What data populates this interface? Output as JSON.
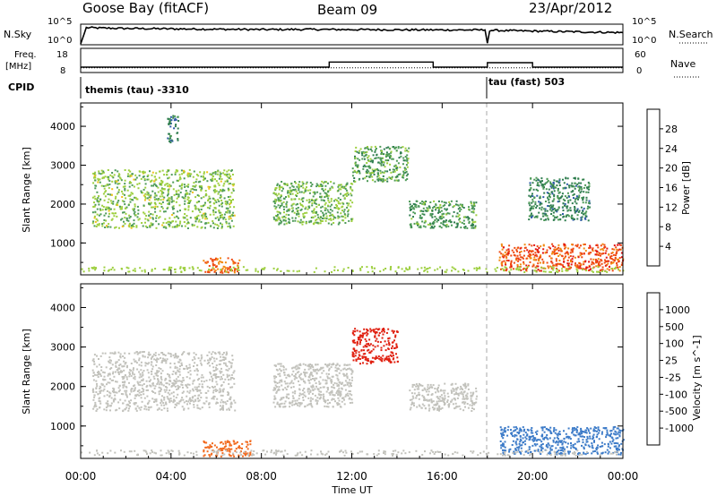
{
  "header": {
    "station": "Goose Bay (fitACF)",
    "beam": "Beam 09",
    "date": "23/Apr/2012"
  },
  "top_strips": {
    "nsky_label": "N.Sky",
    "nsky_ticks": [
      "10^5",
      "10^0"
    ],
    "nsearch_label": "N.Search",
    "nsearch_ticks": [
      "10^5",
      "10^0"
    ],
    "freq_label": "Freq.",
    "freq_unit": "[MHz]",
    "freq_ticks": [
      "18",
      "8"
    ],
    "nave_label": "Nave",
    "nave_ticks": [
      "60",
      "0"
    ],
    "cpid_label": "CPID",
    "cpid_segments": [
      {
        "start_hour": 0,
        "label": "themis (tau) -3310"
      },
      {
        "start_hour": 18,
        "label": "tau (fast) 503"
      }
    ]
  },
  "panels": {
    "power": {
      "ylabel": "Slant Range [km]",
      "yticks": [
        "4000",
        "3000",
        "2000",
        "1000"
      ],
      "colorbar_label": "Power [dB]",
      "colorbar_ticks": [
        "28",
        "24",
        "20",
        "16",
        "12",
        "8",
        "4"
      ]
    },
    "velocity": {
      "ylabel": "Slant Range [km]",
      "yticks": [
        "4000",
        "3000",
        "2000",
        "1000"
      ],
      "colorbar_label": "Velocity [m s^-1]",
      "colorbar_ticks": [
        "1000",
        "500",
        "100",
        "25",
        "-25",
        "-100",
        "-500",
        "-1000"
      ]
    }
  },
  "xaxis": {
    "label": "Time UT",
    "ticks": [
      "00:00",
      "04:00",
      "08:00",
      "12:00",
      "16:00",
      "20:00",
      "00:00"
    ]
  },
  "colors": {
    "power_scale": [
      "#1e35d6",
      "#2e5aa8",
      "#2f7d4f",
      "#4e9b58",
      "#9dcf3f",
      "#f2c21b",
      "#f28a12",
      "#ef4a12",
      "#e21212"
    ],
    "velocity_scale": [
      "#1a3fb5",
      "#3c7bc8",
      "#66c43b",
      "#bfbfbf",
      "#bfbfbf",
      "#f29a2e",
      "#f26a1e",
      "#e02010"
    ],
    "grey_scatter": "#c2c2bc"
  },
  "chart_data": [
    {
      "type": "line",
      "title": "N.Sky / N.Search",
      "x_unit": "hours UT",
      "xlim": [
        0,
        24
      ],
      "series": [
        {
          "name": "N.Sky",
          "x": [
            0,
            0.25,
            1,
            2,
            4,
            6,
            8,
            10,
            12,
            14,
            16,
            17.9,
            18,
            18.1,
            20,
            22,
            24
          ],
          "y_log10": [
            0,
            4.3,
            4.2,
            4.1,
            4.0,
            3.9,
            3.8,
            3.85,
            3.8,
            3.75,
            3.7,
            3.7,
            0.2,
            3.6,
            3.4,
            3.2,
            3.0
          ]
        }
      ],
      "ylim_log10": [
        0,
        5
      ]
    },
    {
      "type": "line",
      "title": "Freq. / Nave",
      "x_unit": "hours UT",
      "xlim": [
        0,
        24
      ],
      "series": [
        {
          "name": "Freq.",
          "x": [
            0,
            11,
            11,
            15.6,
            15.6,
            18,
            18,
            20,
            20,
            24
          ],
          "y": [
            10,
            10,
            12.3,
            12.3,
            10,
            10,
            12,
            12,
            10,
            10
          ]
        },
        {
          "name": "Nave",
          "x": [
            0,
            24
          ],
          "y": [
            10,
            10
          ]
        }
      ],
      "freq_ylim": [
        8,
        18
      ],
      "nave_ylim": [
        0,
        60
      ]
    },
    {
      "type": "scatter",
      "title": "Power [dB]",
      "x_unit": "hours UT",
      "xlim": [
        0,
        24
      ],
      "ylim": [
        180,
        4600
      ],
      "clim": [
        0,
        30
      ],
      "regions": [
        {
          "x": [
            0.5,
            6.8
          ],
          "y": [
            1400,
            2900
          ],
          "value": 14
        },
        {
          "x": [
            3.8,
            4.3
          ],
          "y": [
            3600,
            4300
          ],
          "value": 8
        },
        {
          "x": [
            5.4,
            7.0
          ],
          "y": [
            250,
            650
          ],
          "value": 24
        },
        {
          "x": [
            8.5,
            12.0
          ],
          "y": [
            1500,
            2600
          ],
          "value": 13
        },
        {
          "x": [
            12.0,
            14.5
          ],
          "y": [
            2600,
            3500
          ],
          "value": 12
        },
        {
          "x": [
            14.5,
            17.5
          ],
          "y": [
            1400,
            2100
          ],
          "value": 11
        },
        {
          "x": [
            18.5,
            24.0
          ],
          "y": [
            300,
            1000
          ],
          "value": 25
        },
        {
          "x": [
            19.8,
            22.5
          ],
          "y": [
            1600,
            2700
          ],
          "value": 9
        }
      ]
    },
    {
      "type": "scatter",
      "title": "Velocity [m s^-1]",
      "x_unit": "hours UT",
      "xlim": [
        0,
        24
      ],
      "ylim": [
        180,
        4600
      ],
      "clim": [
        -1000,
        1000
      ],
      "regions": [
        {
          "x": [
            0.5,
            6.8
          ],
          "y": [
            1400,
            2900
          ],
          "value": 0
        },
        {
          "x": [
            5.4,
            7.5
          ],
          "y": [
            250,
            650
          ],
          "value": -300
        },
        {
          "x": [
            8.5,
            12.0
          ],
          "y": [
            1500,
            2600
          ],
          "value": 0
        },
        {
          "x": [
            12.0,
            14.0
          ],
          "y": [
            2600,
            3500
          ],
          "value": -800
        },
        {
          "x": [
            14.5,
            17.5
          ],
          "y": [
            1400,
            2100
          ],
          "value": 0
        },
        {
          "x": [
            18.5,
            24.0
          ],
          "y": [
            300,
            1000
          ],
          "value": 150
        }
      ]
    }
  ]
}
